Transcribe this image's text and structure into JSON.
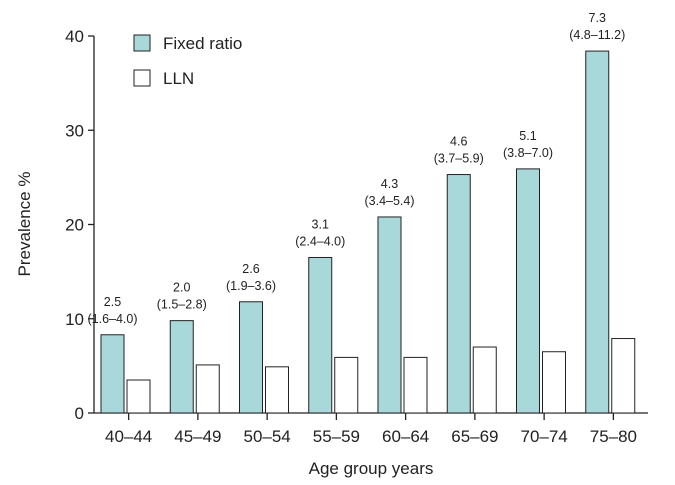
{
  "chart_data": {
    "type": "bar",
    "title": "",
    "xlabel": "Age group years",
    "ylabel": "Prevalence %",
    "ylim": [
      0,
      40
    ],
    "yticks": [
      0,
      10,
      20,
      30,
      40
    ],
    "categories": [
      "40–44",
      "45–49",
      "50–54",
      "55–59",
      "60–64",
      "65–69",
      "70–74",
      "75–80"
    ],
    "series": [
      {
        "name": "Fixed ratio",
        "color": "#a8d8da",
        "values": [
          8.3,
          9.8,
          11.8,
          16.5,
          20.8,
          25.3,
          25.9,
          38.4
        ]
      },
      {
        "name": "LLN",
        "color": "#ffffff",
        "values": [
          3.5,
          5.1,
          4.9,
          5.9,
          5.9,
          7.0,
          6.5,
          7.9
        ]
      }
    ],
    "annotations": [
      {
        "value": "2.5",
        "ci": "(1.6–4.0)"
      },
      {
        "value": "2.0",
        "ci": "(1.5–2.8)"
      },
      {
        "value": "2.6",
        "ci": "(1.9–3.6)"
      },
      {
        "value": "3.1",
        "ci": "(2.4–4.0)"
      },
      {
        "value": "4.3",
        "ci": "(3.4–5.4)"
      },
      {
        "value": "4.6",
        "ci": "(3.7–5.9)"
      },
      {
        "value": "5.1",
        "ci": "(3.8–7.0)"
      },
      {
        "value": "7.3",
        "ci": "(4.8–11.2)"
      }
    ],
    "legend_position": "top-left",
    "grid": false
  }
}
